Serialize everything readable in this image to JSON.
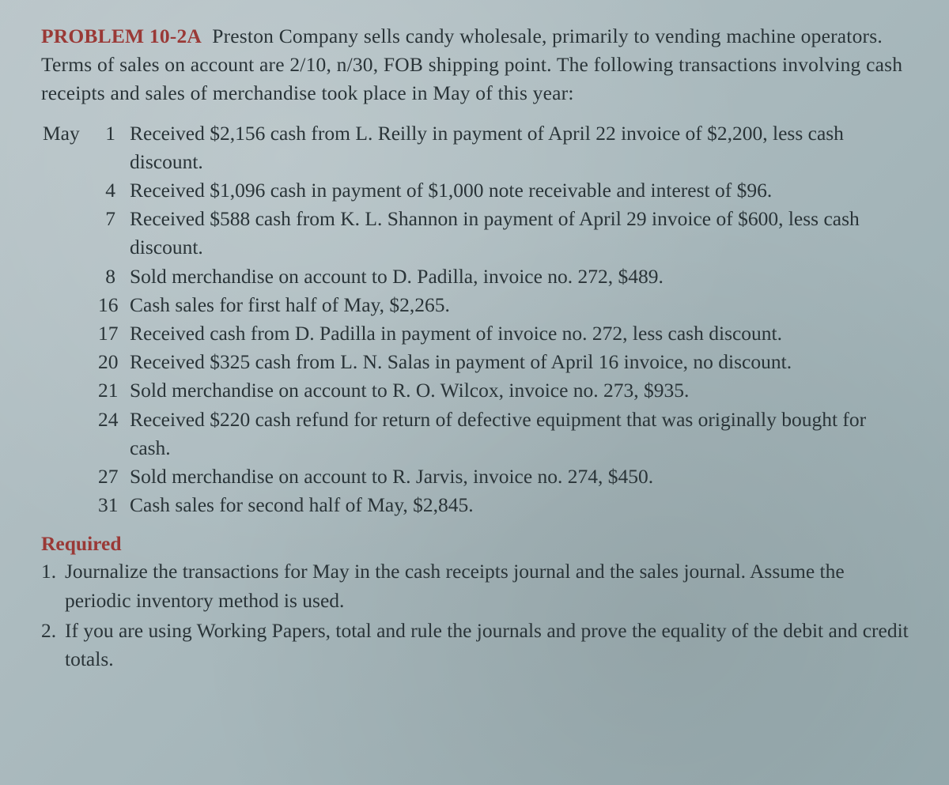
{
  "colors": {
    "accent": "#9a3936",
    "text": "#2a3438",
    "bg_light": "#b8c4c8",
    "bg_dark": "#98acb0"
  },
  "typography": {
    "font_family": "Georgia, Times New Roman, serif",
    "body_fontsize": 25.5,
    "line_height": 1.42
  },
  "problem": {
    "label": "PROBLEM 10-2A",
    "intro": "Preston Company sells candy wholesale, primarily to vending machine operators. Terms of sales on account are 2/10, n/30, FOB shipping point. The following transactions involving cash receipts and sales of merchandise took place in May of this year:"
  },
  "month": "May",
  "transactions": [
    {
      "day": "1",
      "text": "Received $2,156 cash from L. Reilly in payment of April 22 invoice of $2,200, less cash discount."
    },
    {
      "day": "4",
      "text": "Received $1,096 cash in payment of $1,000 note receivable and interest of $96."
    },
    {
      "day": "7",
      "text": "Received $588 cash from K. L. Shannon in payment of April 29 invoice of $600, less cash discount."
    },
    {
      "day": "8",
      "text": "Sold merchandise on account to D. Padilla, invoice no. 272, $489."
    },
    {
      "day": "16",
      "text": "Cash sales for first half of May, $2,265."
    },
    {
      "day": "17",
      "text": "Received cash from D. Padilla in payment of invoice no. 272, less cash discount."
    },
    {
      "day": "20",
      "text": "Received $325 cash from L. N. Salas in payment of April 16 invoice, no discount."
    },
    {
      "day": "21",
      "text": "Sold merchandise on account to R. O. Wilcox, invoice no. 273, $935."
    },
    {
      "day": "24",
      "text": "Received $220 cash refund for return of defective equipment that was originally bought for cash."
    },
    {
      "day": "27",
      "text": "Sold merchandise on account to R. Jarvis, invoice no. 274, $450."
    },
    {
      "day": "31",
      "text": "Cash sales for second half of May, $2,845."
    }
  ],
  "required": {
    "label": "Required",
    "items": [
      {
        "num": "1.",
        "text": "Journalize the transactions for May in the cash receipts journal and the sales journal. Assume the periodic inventory method is used."
      },
      {
        "num": "2.",
        "text": "If you are using Working Papers, total and rule the journals and prove the equality of the debit and credit totals."
      }
    ]
  }
}
